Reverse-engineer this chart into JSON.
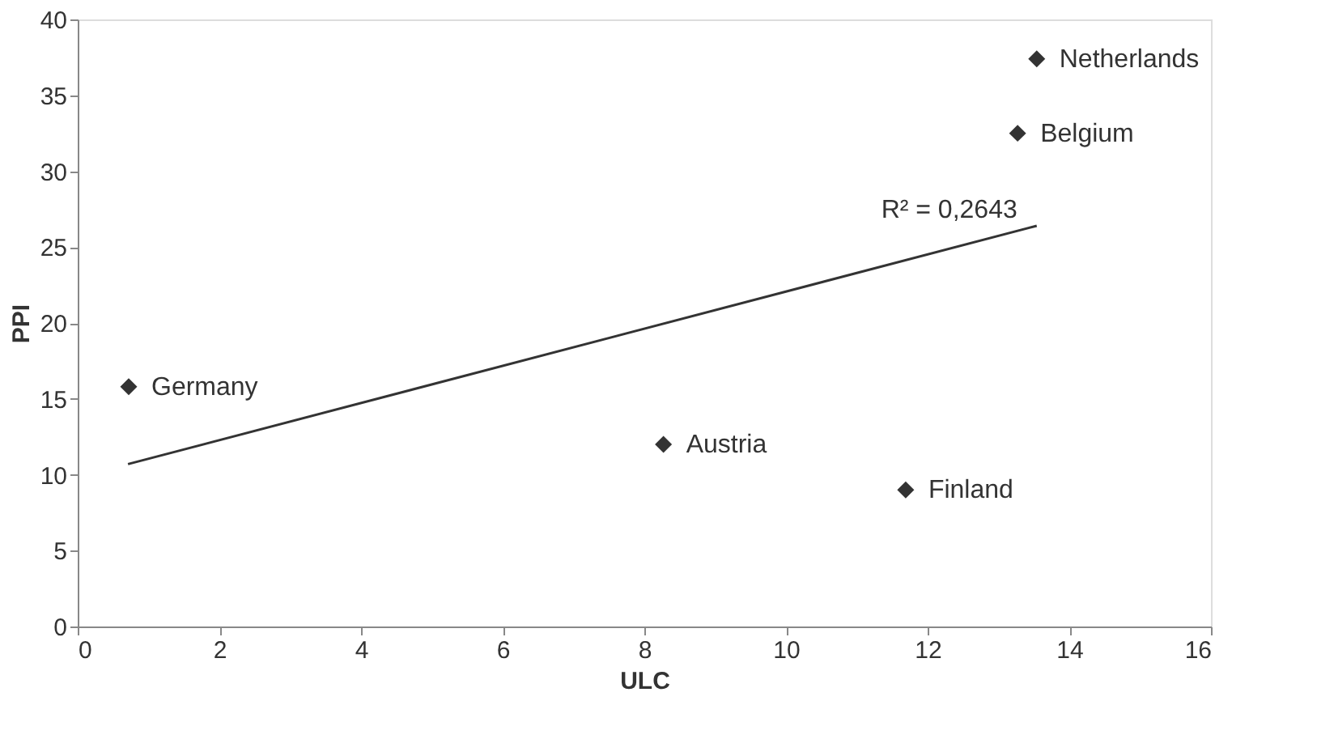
{
  "chart_data": {
    "type": "scatter",
    "xlabel": "ULC",
    "ylabel": "PPI",
    "xlim": [
      0,
      16
    ],
    "xticks": [
      0,
      2,
      4,
      6,
      8,
      10,
      12,
      14,
      16
    ],
    "ylim": [
      0,
      40
    ],
    "yticks": [
      0,
      5,
      10,
      15,
      20,
      25,
      30,
      35,
      40
    ],
    "grid": false,
    "legend": false,
    "marker": "diamond",
    "series": [
      {
        "color": "#333333",
        "x": [
          0.72,
          8.27,
          11.69,
          13.27,
          13.54
        ],
        "values": [
          15.8,
          12.0,
          9.0,
          32.5,
          37.4
        ]
      },
      {
        "type": "line",
        "color": "#333333",
        "line_style": "solid",
        "marker": "none",
        "x": [
          0.71,
          13.54
        ],
        "values": [
          10.7,
          26.4
        ]
      }
    ],
    "annotations": [
      {
        "text": "Germany",
        "x": 0.72,
        "y": 15.8
      },
      {
        "text": "Austria",
        "x": 8.27,
        "y": 12.0
      },
      {
        "text": "Finland",
        "x": 11.69,
        "y": 9.0
      },
      {
        "text": "Belgium",
        "x": 13.27,
        "y": 32.5
      },
      {
        "text": "Netherlands",
        "x": 13.54,
        "y": 37.4
      },
      "R² = 0,2643"
    ]
  }
}
